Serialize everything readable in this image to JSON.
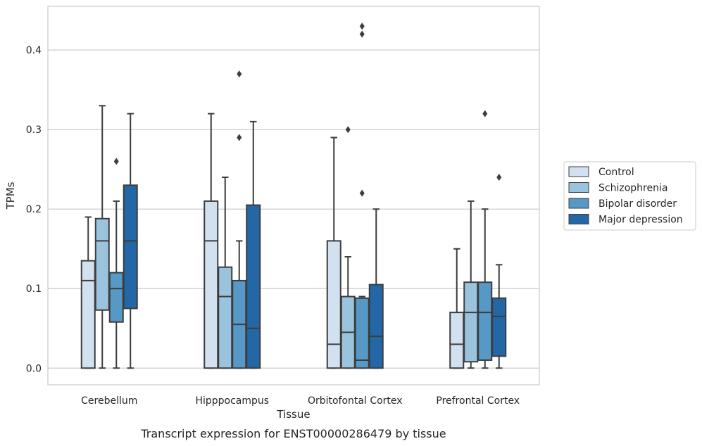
{
  "chart_data": {
    "type": "boxplot",
    "caption": "Transcript expression for ENST00000286479 by tissue",
    "xlabel": "Tissue",
    "ylabel": "TPMs",
    "ylim": [
      -0.021,
      0.455
    ],
    "yticks": [
      0.0,
      0.1,
      0.2,
      0.3,
      0.4
    ],
    "ytick_labels": [
      "0.0",
      "0.1",
      "0.2",
      "0.3",
      "0.4"
    ],
    "grid": "horizontal",
    "legend_position": "right",
    "categories": [
      "Cerebellum",
      "Hipppocampus",
      "Orbitofontal Cortex",
      "Prefrontal Cortex"
    ],
    "series": [
      {
        "name": "Control",
        "color": "#d2e1f0",
        "boxes": [
          {
            "whisker_low": 0.0,
            "q1": 0.0,
            "median": 0.11,
            "q3": 0.135,
            "whisker_high": 0.19,
            "outliers": []
          },
          {
            "whisker_low": 0.0,
            "q1": 0.0,
            "median": 0.16,
            "q3": 0.21,
            "whisker_high": 0.32,
            "outliers": []
          },
          {
            "whisker_low": 0.0,
            "q1": 0.0,
            "median": 0.03,
            "q3": 0.16,
            "whisker_high": 0.29,
            "outliers": []
          },
          {
            "whisker_low": 0.0,
            "q1": 0.0,
            "median": 0.03,
            "q3": 0.07,
            "whisker_high": 0.15,
            "outliers": []
          }
        ]
      },
      {
        "name": "Schizophrenia",
        "color": "#9ac4dd",
        "boxes": [
          {
            "whisker_low": 0.0,
            "q1": 0.073,
            "median": 0.16,
            "q3": 0.188,
            "whisker_high": 0.33,
            "outliers": []
          },
          {
            "whisker_low": 0.0,
            "q1": 0.0,
            "median": 0.09,
            "q3": 0.127,
            "whisker_high": 0.24,
            "outliers": []
          },
          {
            "whisker_low": 0.0,
            "q1": 0.0,
            "median": 0.045,
            "q3": 0.09,
            "whisker_high": 0.14,
            "outliers": [
              0.3
            ]
          },
          {
            "whisker_low": 0.0,
            "q1": 0.008,
            "median": 0.07,
            "q3": 0.108,
            "whisker_high": 0.21,
            "outliers": []
          }
        ]
      },
      {
        "name": "Bipolar disorder",
        "color": "#5698c6",
        "boxes": [
          {
            "whisker_low": 0.0,
            "q1": 0.058,
            "median": 0.1,
            "q3": 0.12,
            "whisker_high": 0.21,
            "outliers": [
              0.26
            ]
          },
          {
            "whisker_low": 0.0,
            "q1": 0.0,
            "median": 0.055,
            "q3": 0.11,
            "whisker_high": 0.16,
            "outliers": [
              0.29,
              0.37
            ]
          },
          {
            "whisker_low": 0.0,
            "q1": 0.0,
            "median": 0.01,
            "q3": 0.088,
            "whisker_high": 0.09,
            "outliers": [
              0.22,
              0.42,
              0.43
            ]
          },
          {
            "whisker_low": 0.0,
            "q1": 0.01,
            "median": 0.07,
            "q3": 0.108,
            "whisker_high": 0.2,
            "outliers": [
              0.32
            ]
          }
        ]
      },
      {
        "name": "Major depression",
        "color": "#2467a7",
        "boxes": [
          {
            "whisker_low": 0.0,
            "q1": 0.075,
            "median": 0.16,
            "q3": 0.23,
            "whisker_high": 0.32,
            "outliers": []
          },
          {
            "whisker_low": 0.0,
            "q1": 0.0,
            "median": 0.05,
            "q3": 0.205,
            "whisker_high": 0.31,
            "outliers": []
          },
          {
            "whisker_low": 0.0,
            "q1": 0.0,
            "median": 0.04,
            "q3": 0.105,
            "whisker_high": 0.2,
            "outliers": []
          },
          {
            "whisker_low": 0.0,
            "q1": 0.015,
            "median": 0.065,
            "q3": 0.088,
            "whisker_high": 0.13,
            "outliers": [
              0.24
            ]
          }
        ]
      }
    ],
    "colors": {
      "grid": "#cccccc",
      "axes_border": "#cccccc",
      "box_edge": "#3d3d3d",
      "text": "#262626"
    }
  }
}
